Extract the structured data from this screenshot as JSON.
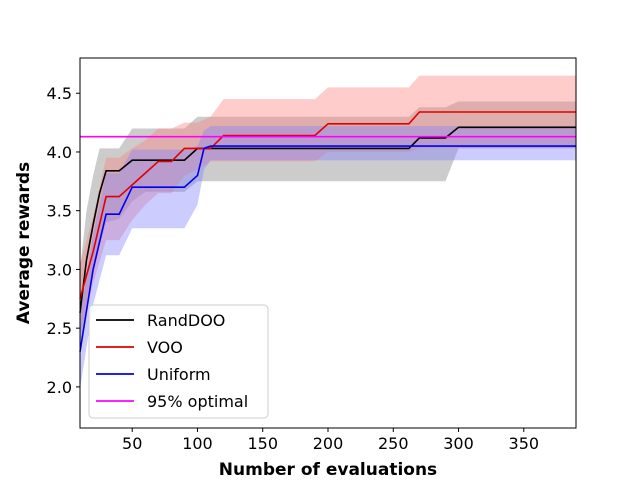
{
  "chart_data": {
    "type": "line",
    "title": "",
    "xlabel": "Number of evaluations",
    "ylabel": "Average rewards",
    "xlim": [
      10,
      390
    ],
    "ylim": [
      1.65,
      4.8
    ],
    "x_ticks": [
      50,
      100,
      150,
      200,
      250,
      300,
      350
    ],
    "y_ticks": [
      2.0,
      2.5,
      3.0,
      3.5,
      4.0,
      4.5
    ],
    "grid": false,
    "legend_position": "lower-left",
    "series": [
      {
        "name": "RandDOO",
        "color": "#000000",
        "band_color": "#808080",
        "band_opacity": 0.4,
        "x": [
          10,
          15,
          20,
          25,
          30,
          40,
          50,
          60,
          70,
          80,
          90,
          100,
          110,
          120,
          150,
          200,
          250,
          262,
          270,
          290,
          300,
          350,
          390
        ],
        "y": [
          2.63,
          3.08,
          3.38,
          3.65,
          3.84,
          3.84,
          3.93,
          3.93,
          3.93,
          3.93,
          3.93,
          4.03,
          4.03,
          4.03,
          4.03,
          4.03,
          4.03,
          4.03,
          4.12,
          4.12,
          4.21,
          4.21,
          4.21
        ],
        "lower": [
          2.3,
          2.65,
          2.95,
          3.2,
          3.4,
          3.43,
          3.58,
          3.66,
          3.66,
          3.66,
          3.66,
          3.75,
          3.75,
          3.75,
          3.75,
          3.75,
          3.75,
          3.75,
          3.75,
          3.75,
          4.03,
          4.03,
          4.03
        ],
        "upper": [
          3.0,
          3.5,
          3.8,
          4.03,
          4.03,
          4.03,
          4.2,
          4.2,
          4.2,
          4.2,
          4.2,
          4.3,
          4.3,
          4.3,
          4.3,
          4.3,
          4.3,
          4.3,
          4.38,
          4.38,
          4.43,
          4.43,
          4.43
        ]
      },
      {
        "name": "VOO",
        "color": "#e00000",
        "band_color": "#ff8080",
        "band_opacity": 0.4,
        "x": [
          10,
          20,
          30,
          40,
          50,
          60,
          70,
          80,
          90,
          100,
          110,
          120,
          150,
          190,
          200,
          250,
          262,
          270,
          300,
          350,
          390
        ],
        "y": [
          2.75,
          3.15,
          3.62,
          3.62,
          3.72,
          3.82,
          3.92,
          3.92,
          4.03,
          4.03,
          4.03,
          4.14,
          4.14,
          4.14,
          4.24,
          4.24,
          4.24,
          4.34,
          4.34,
          4.34,
          4.34
        ],
        "lower": [
          2.45,
          2.88,
          3.25,
          3.25,
          3.42,
          3.55,
          3.65,
          3.65,
          3.8,
          3.85,
          3.92,
          3.92,
          3.92,
          3.92,
          4.0,
          4.0,
          4.0,
          4.03,
          4.03,
          4.03,
          4.03
        ],
        "upper": [
          3.05,
          3.45,
          3.95,
          3.95,
          4.03,
          4.1,
          4.2,
          4.2,
          4.25,
          4.25,
          4.3,
          4.45,
          4.45,
          4.45,
          4.55,
          4.55,
          4.55,
          4.65,
          4.65,
          4.65,
          4.65
        ]
      },
      {
        "name": "Uniform",
        "color": "#0000ee",
        "band_color": "#8080ff",
        "band_opacity": 0.4,
        "x": [
          10,
          20,
          30,
          40,
          50,
          60,
          80,
          90,
          100,
          105,
          110,
          120,
          150,
          200,
          250,
          300,
          350,
          390
        ],
        "y": [
          2.3,
          3.0,
          3.47,
          3.47,
          3.7,
          3.7,
          3.7,
          3.7,
          3.8,
          4.03,
          4.05,
          4.05,
          4.05,
          4.05,
          4.05,
          4.05,
          4.05,
          4.05
        ],
        "lower": [
          1.98,
          2.7,
          3.12,
          3.12,
          3.35,
          3.35,
          3.35,
          3.35,
          3.55,
          3.85,
          3.93,
          3.93,
          3.93,
          3.93,
          3.93,
          3.93,
          3.93,
          3.93
        ],
        "upper": [
          2.6,
          3.3,
          3.82,
          3.82,
          4.02,
          4.02,
          4.02,
          4.02,
          4.05,
          4.18,
          4.22,
          4.22,
          4.22,
          4.22,
          4.22,
          4.22,
          4.22,
          4.22
        ]
      },
      {
        "name": "95% optimal",
        "color": "#ff00ff",
        "x": [
          10,
          390
        ],
        "y": [
          4.13,
          4.13
        ]
      }
    ]
  }
}
